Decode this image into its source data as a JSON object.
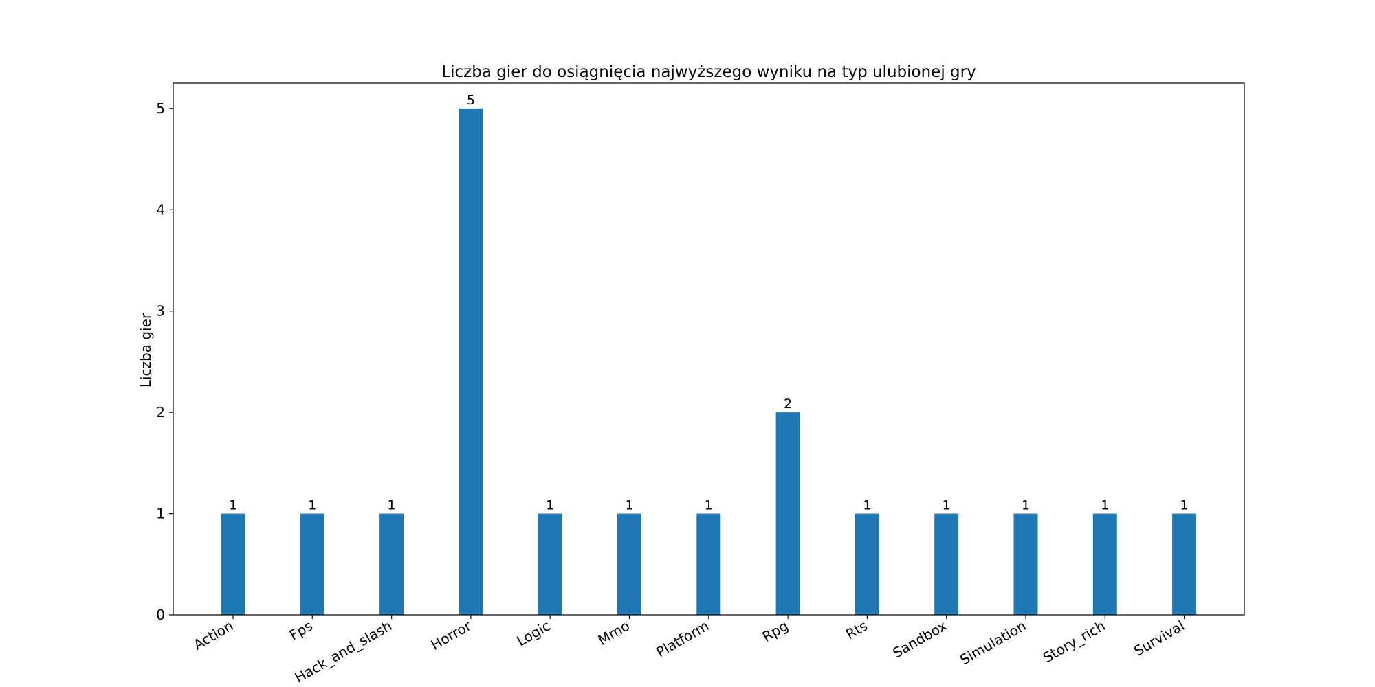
{
  "chart_data": {
    "type": "bar",
    "title": "Liczba gier do osiągnięcia najwyższego wyniku na typ ulubionej gry",
    "xlabel": "",
    "ylabel": "Liczba gier",
    "categories": [
      "Action",
      "Fps",
      "Hack_and_slash",
      "Horror",
      "Logic",
      "Mmo",
      "Platform",
      "Rpg",
      "Rts",
      "Sandbox",
      "Simulation",
      "Story_rich",
      "Survival"
    ],
    "values": [
      1,
      1,
      1,
      5,
      1,
      1,
      1,
      2,
      1,
      1,
      1,
      1,
      1
    ],
    "ylim": [
      0,
      5.25
    ],
    "yticks": [
      0,
      1,
      2,
      3,
      4,
      5
    ],
    "grid": false,
    "legend": false,
    "bar_color": "#1f77b4",
    "data_labels": true
  }
}
